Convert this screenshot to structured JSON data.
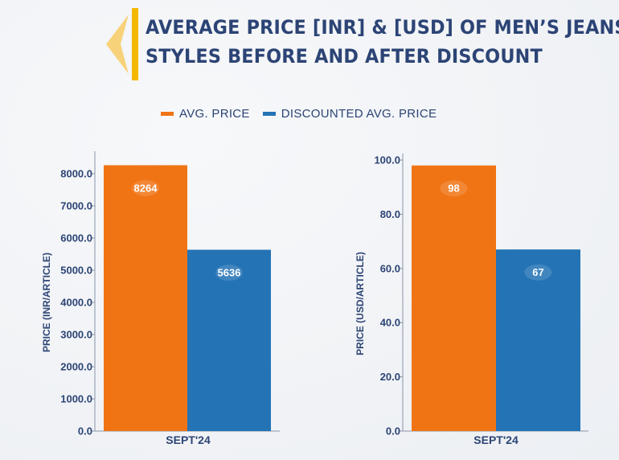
{
  "title_lines": [
    "AVERAGE PRICE [INR] & [USD] OF MEN’S JEANS",
    "STYLES BEFORE AND AFTER DISCOUNT"
  ],
  "colors": {
    "avg": "#f07414",
    "discounted": "#2473b5",
    "text": "#2c4475",
    "axis": "#8a95a8",
    "logo_yellow": "#f5b800",
    "logo_light": "#f8d27a"
  },
  "legend": [
    {
      "name": "AVG. PRICE",
      "color": "#f07414"
    },
    {
      "name": "DISCOUNTED AVG. PRICE",
      "color": "#2473b5"
    }
  ],
  "chart_data": [
    {
      "type": "bar",
      "categories": [
        "SEPT'24"
      ],
      "series": [
        {
          "name": "AVG. PRICE",
          "values": [
            8264
          ]
        },
        {
          "name": "DISCOUNTED AVG. PRICE",
          "values": [
            5636
          ]
        }
      ],
      "data_labels": [
        "8264",
        "5636"
      ],
      "ylabel": "PRICE (INR/ARTICLE)",
      "ylim": [
        0,
        8500
      ],
      "yticks": [
        0,
        1000,
        2000,
        3000,
        4000,
        5000,
        6000,
        7000,
        8000
      ],
      "ytick_labels": [
        "0.0",
        "1000.0",
        "2000.0",
        "3000.0",
        "4000.0",
        "5000.0",
        "6000.0",
        "7000.0",
        "8000.0"
      ],
      "grid": false
    },
    {
      "type": "bar",
      "categories": [
        "SEPT'24"
      ],
      "series": [
        {
          "name": "AVG. PRICE",
          "values": [
            98
          ]
        },
        {
          "name": "DISCOUNTED AVG. PRICE",
          "values": [
            67
          ]
        }
      ],
      "data_labels": [
        "98",
        "67"
      ],
      "ylabel": "PRICE (USD/ARTICLE)",
      "ylim": [
        0,
        100
      ],
      "yticks": [
        0,
        20,
        40,
        60,
        80,
        100
      ],
      "ytick_labels": [
        "0.0",
        "20.0",
        "40.0",
        "60.0",
        "80.0",
        "100.0"
      ],
      "grid": false
    }
  ]
}
